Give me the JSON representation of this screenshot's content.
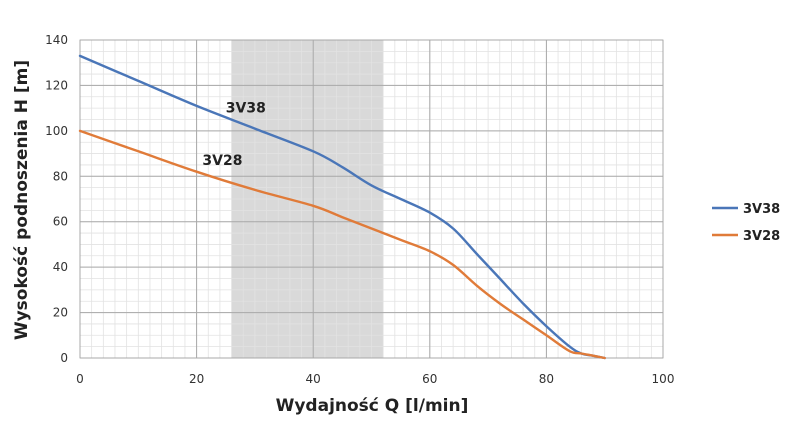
{
  "chart_data": {
    "type": "line",
    "xlabel": "Wydajność Q [l/min]",
    "ylabel": "Wysokość podnoszenia H [m]",
    "xlim": [
      0,
      100
    ],
    "ylim": [
      0,
      140
    ],
    "x_ticks": [
      0,
      20,
      40,
      60,
      80,
      100
    ],
    "y_ticks": [
      0,
      20,
      40,
      60,
      80,
      100,
      120,
      140
    ],
    "grid": true,
    "legend_position": "right",
    "shaded_region": {
      "x_from": 26,
      "x_to": 52,
      "color": "#d9d9d9"
    },
    "series": [
      {
        "name": "3V38",
        "color": "#4a76b8",
        "label_at": {
          "x": 25,
          "y": 108
        },
        "x": [
          0,
          10,
          20,
          30,
          40,
          45,
          50,
          55,
          60,
          64,
          68,
          72,
          76,
          80,
          84,
          86,
          88,
          90
        ],
        "y": [
          133,
          122,
          111,
          101,
          91,
          84,
          76,
          70,
          64,
          57,
          46,
          35,
          24,
          14,
          5,
          2,
          1,
          0
        ]
      },
      {
        "name": "3V28",
        "color": "#e07b39",
        "label_at": {
          "x": 21,
          "y": 85
        },
        "x": [
          0,
          10,
          20,
          30,
          40,
          45,
          50,
          55,
          60,
          64,
          68,
          72,
          76,
          80,
          84,
          86,
          88,
          90
        ],
        "y": [
          100,
          91,
          82,
          74,
          67,
          62,
          57,
          52,
          47,
          41,
          32,
          24,
          17,
          10,
          3,
          2,
          1,
          0
        ]
      }
    ]
  }
}
